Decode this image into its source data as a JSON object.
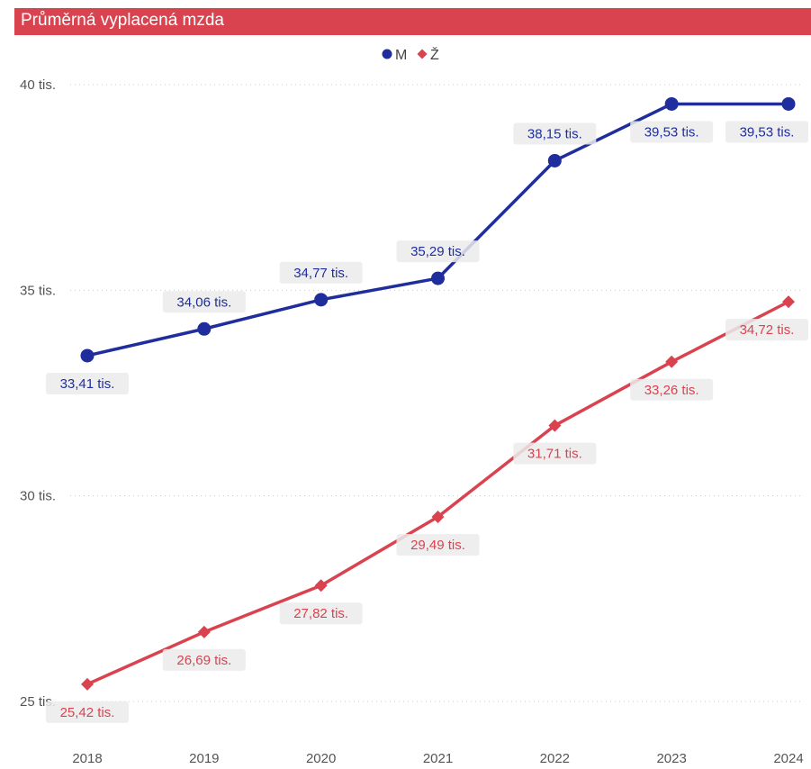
{
  "chart_data": {
    "type": "line",
    "title": "Průměrná vyplacená mzda",
    "categories": [
      "2018",
      "2019",
      "2020",
      "2021",
      "2022",
      "2023",
      "2024"
    ],
    "series": [
      {
        "name": "M",
        "color": "#1f2e9c",
        "marker": "circle",
        "values": [
          33.41,
          34.06,
          34.77,
          35.29,
          38.15,
          39.53,
          39.53
        ],
        "labels": [
          "33,41 tis.",
          "34,06 tis.",
          "34,77 tis.",
          "35,29 tis.",
          "38,15 tis.",
          "39,53 tis.",
          "39,53 tis."
        ]
      },
      {
        "name": "Ž",
        "color": "#d9434f",
        "marker": "diamond",
        "values": [
          25.42,
          26.69,
          27.82,
          29.49,
          31.71,
          33.26,
          34.72
        ],
        "labels": [
          "25,42 tis.",
          "26,69 tis.",
          "27,82 tis.",
          "29,49 tis.",
          "31,71 tis.",
          "33,26 tis.",
          "34,72 tis."
        ]
      }
    ],
    "ylim": [
      25,
      40
    ],
    "yticks": [
      25,
      30,
      35,
      40
    ],
    "ytick_labels": [
      "25 tis.",
      "30 tis.",
      "35 tis.",
      "40 tis."
    ],
    "xlabel": "",
    "ylabel": "",
    "grid": true,
    "legend_position": "top-center"
  },
  "colors": {
    "title_bar": "#d9434f",
    "label_background": "#ebebeb",
    "grid": "#cccccc"
  }
}
